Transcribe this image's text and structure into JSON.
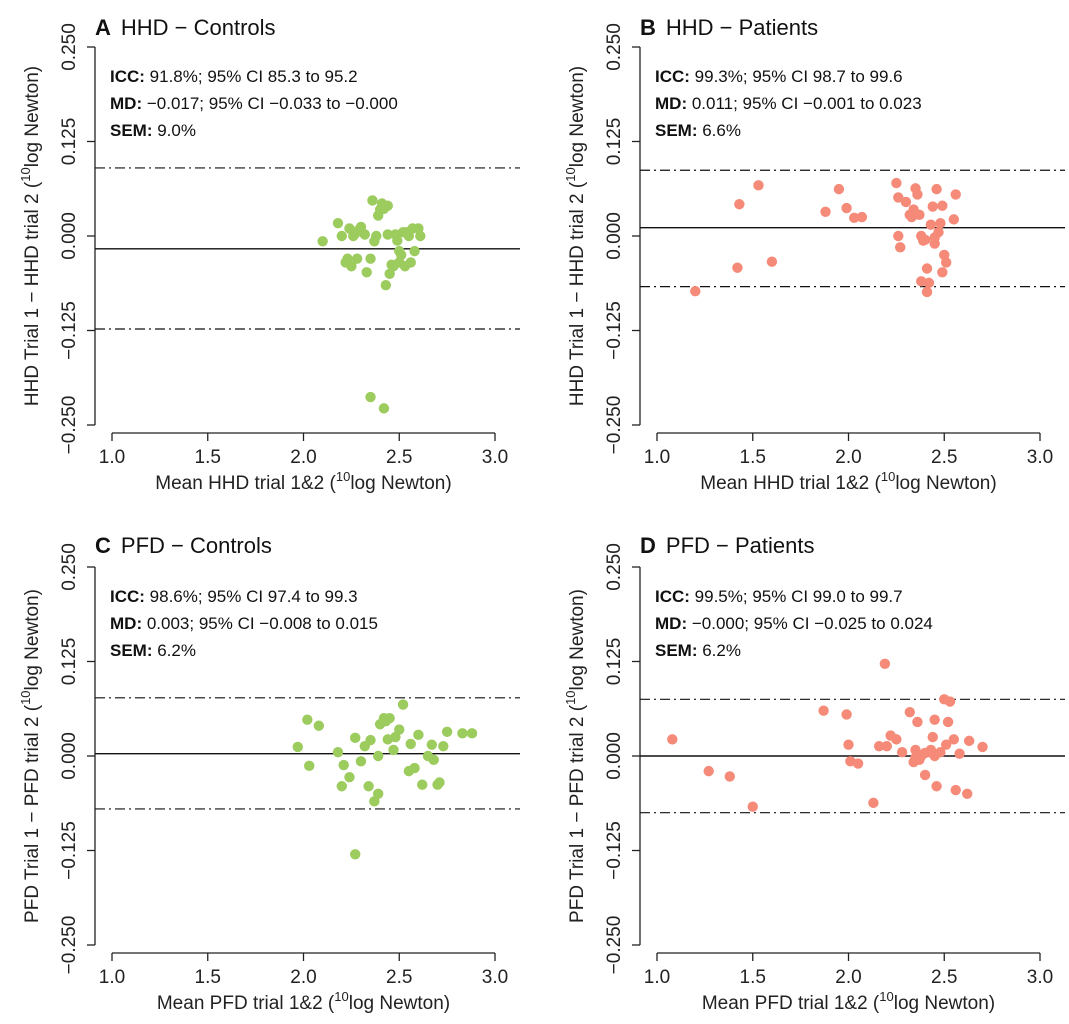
{
  "chart_data": [
    {
      "type": "scatter",
      "panel": "A",
      "title": "HHD − Controls",
      "xlabel_main": "Mean HHD trial 1&2 (",
      "xlabel_sup": "10",
      "xlabel_end": "log Newton)",
      "ylabel_main": "HHD Trial 1 − HHD trial 2 (",
      "ylabel_sup": "10",
      "ylabel_end": "log Newton)",
      "stats": [
        {
          "key": "ICC:",
          "text": " 91.8%; 95% CI 85.3 to 95.2"
        },
        {
          "key": "MD:",
          "text": " −0.017; 95% CI −0.033 to −0.000"
        },
        {
          "key": "SEM:",
          "text": " 9.0%"
        }
      ],
      "xticks": [
        "1.0",
        "1.5",
        "2.0",
        "2.5",
        "3.0"
      ],
      "xtick_values": [
        1.0,
        1.5,
        2.0,
        2.5,
        3.0
      ],
      "yticks": [
        "−0.250",
        "−0.125",
        "0.000",
        "0.125",
        "0.250"
      ],
      "ytick_values": [
        -0.25,
        -0.125,
        0.0,
        0.125,
        0.25
      ],
      "xlim": [
        1.0,
        3.0
      ],
      "ylim": [
        -0.25,
        0.25
      ],
      "mean_diff": -0.017,
      "loa_upper": 0.09,
      "loa_lower": -0.123,
      "color": "#9ccb5e",
      "x": [
        2.1,
        2.18,
        2.2,
        2.22,
        2.24,
        2.25,
        2.27,
        2.28,
        2.3,
        2.32,
        2.33,
        2.35,
        2.36,
        2.37,
        2.39,
        2.4,
        2.41,
        2.42,
        2.43,
        2.44,
        2.45,
        2.46,
        2.47,
        2.48,
        2.49,
        2.5,
        2.51,
        2.52,
        2.53,
        2.55,
        2.56,
        2.57,
        2.58,
        2.6,
        2.61,
        2.35,
        2.42,
        2.23,
        2.26,
        2.29,
        2.38,
        2.44,
        2.5,
        2.54
      ],
      "y": [
        -0.007,
        0.017,
        0.0,
        -0.035,
        0.01,
        -0.04,
        0.003,
        -0.03,
        0.012,
        0.002,
        -0.048,
        -0.03,
        0.047,
        -0.007,
        0.027,
        0.035,
        0.043,
        0.036,
        -0.065,
        0.04,
        -0.05,
        -0.038,
        -0.04,
        0.002,
        -0.006,
        -0.035,
        -0.025,
        0.005,
        -0.04,
        0.0,
        -0.035,
        0.01,
        -0.02,
        0.01,
        0.0,
        -0.213,
        -0.228,
        -0.03,
        0.0,
        0.008,
        0.0,
        0.002,
        -0.02,
        0.005
      ]
    },
    {
      "type": "scatter",
      "panel": "B",
      "title": "HHD − Patients",
      "xlabel_main": "Mean HHD trial 1&2 (",
      "xlabel_sup": "10",
      "xlabel_end": "log Newton)",
      "ylabel_main": "HHD Trial 1 − HHD trial 2 (",
      "ylabel_sup": "10",
      "ylabel_end": "log Newton)",
      "stats": [
        {
          "key": "ICC:",
          "text": " 99.3%; 95% CI 98.7 to 99.6"
        },
        {
          "key": "MD:",
          "text": " 0.011; 95% CI −0.001 to 0.023"
        },
        {
          "key": "SEM:",
          "text": " 6.6%"
        }
      ],
      "xticks": [
        "1.0",
        "1.5",
        "2.0",
        "2.5",
        "3.0"
      ],
      "xtick_values": [
        1.0,
        1.5,
        2.0,
        2.5,
        3.0
      ],
      "yticks": [
        "−0.250",
        "−0.125",
        "0.000",
        "0.125",
        "0.250"
      ],
      "ytick_values": [
        -0.25,
        -0.125,
        0.0,
        0.125,
        0.25
      ],
      "xlim": [
        1.0,
        3.0
      ],
      "ylim": [
        -0.25,
        0.25
      ],
      "mean_diff": 0.011,
      "loa_upper": 0.087,
      "loa_lower": -0.067,
      "color": "#f58a78",
      "x": [
        1.2,
        1.42,
        1.43,
        1.53,
        1.6,
        1.88,
        1.95,
        1.99,
        2.03,
        2.07,
        2.25,
        2.26,
        2.27,
        2.3,
        2.32,
        2.33,
        2.35,
        2.36,
        2.37,
        2.38,
        2.39,
        2.4,
        2.41,
        2.42,
        2.43,
        2.44,
        2.45,
        2.46,
        2.47,
        2.48,
        2.49,
        2.5,
        2.51,
        2.55,
        2.56,
        2.38,
        2.41,
        2.26,
        2.34,
        2.45,
        2.49
      ],
      "y": [
        -0.073,
        -0.042,
        0.042,
        0.067,
        -0.034,
        0.032,
        0.062,
        0.037,
        0.024,
        0.025,
        0.07,
        0.051,
        -0.015,
        0.045,
        0.028,
        0.025,
        0.063,
        0.055,
        0.028,
        0.0,
        -0.006,
        -0.005,
        -0.043,
        -0.062,
        0.015,
        0.039,
        -0.002,
        0.062,
        0.005,
        0.017,
        0.04,
        -0.025,
        -0.035,
        0.022,
        0.055,
        -0.06,
        -0.074,
        0.0,
        0.035,
        -0.01,
        -0.048
      ]
    },
    {
      "type": "scatter",
      "panel": "C",
      "title": "PFD − Controls",
      "xlabel_main": "Mean PFD trial 1&2 (",
      "xlabel_sup": "10",
      "xlabel_end": "log Newton)",
      "ylabel_main": "PFD Trial 1 − PFD trial 2 (",
      "ylabel_sup": "10",
      "ylabel_end": "log Newton)",
      "stats": [
        {
          "key": "ICC:",
          "text": " 98.6%; 95% CI 97.4 to 99.3"
        },
        {
          "key": "MD:",
          "text": " 0.003; 95% CI −0.008 to 0.015"
        },
        {
          "key": "SEM:",
          "text": " 6.2%"
        }
      ],
      "xticks": [
        "1.0",
        "1.5",
        "2.0",
        "2.5",
        "3.0"
      ],
      "xtick_values": [
        1.0,
        1.5,
        2.0,
        2.5,
        3.0
      ],
      "yticks": [
        "−0.250",
        "−0.125",
        "0.000",
        "0.125",
        "0.250"
      ],
      "ytick_values": [
        -0.25,
        -0.125,
        0.0,
        0.125,
        0.25
      ],
      "xlim": [
        1.0,
        3.0
      ],
      "ylim": [
        -0.25,
        0.25
      ],
      "mean_diff": 0.003,
      "loa_upper": 0.077,
      "loa_lower": -0.07,
      "color": "#9ccb5e",
      "x": [
        1.97,
        2.02,
        2.03,
        2.08,
        2.18,
        2.2,
        2.21,
        2.27,
        2.3,
        2.32,
        2.34,
        2.37,
        2.39,
        2.4,
        2.42,
        2.43,
        2.44,
        2.45,
        2.48,
        2.5,
        2.52,
        2.55,
        2.56,
        2.58,
        2.6,
        2.62,
        2.65,
        2.67,
        2.7,
        2.71,
        2.73,
        2.75,
        2.83,
        2.88,
        2.27,
        2.39,
        2.35,
        2.24,
        2.47,
        2.68
      ],
      "y": [
        0.012,
        0.048,
        -0.013,
        0.04,
        0.005,
        -0.04,
        -0.012,
        -0.13,
        -0.007,
        0.013,
        -0.04,
        -0.06,
        -0.05,
        0.042,
        0.05,
        0.046,
        0.022,
        0.05,
        0.025,
        0.035,
        0.068,
        -0.02,
        0.016,
        -0.016,
        0.028,
        -0.038,
        0.0,
        0.015,
        -0.038,
        -0.035,
        0.013,
        0.032,
        0.03,
        0.03,
        0.024,
        0.0,
        0.021,
        -0.028,
        0.008,
        -0.005
      ]
    },
    {
      "type": "scatter",
      "panel": "D",
      "title": "PFD − Patients",
      "xlabel_main": "Mean PFD trial 1&2 (",
      "xlabel_sup": "10",
      "xlabel_end": "log Newton)",
      "ylabel_main": "PFD Trial 1 − PFD trial 2 (",
      "ylabel_sup": "10",
      "ylabel_end": "log Newton)",
      "stats": [
        {
          "key": "ICC:",
          "text": " 99.5%; 95% CI 99.0 to 99.7"
        },
        {
          "key": "MD:",
          "text": " −0.000; 95% CI −0.025 to 0.024"
        },
        {
          "key": "SEM:",
          "text": " 6.2%"
        }
      ],
      "xticks": [
        "1.0",
        "1.5",
        "2.0",
        "2.5",
        "3.0"
      ],
      "xtick_values": [
        1.0,
        1.5,
        2.0,
        2.5,
        3.0
      ],
      "yticks": [
        "−0.250",
        "−0.125",
        "0.000",
        "0.125",
        "0.250"
      ],
      "ytick_values": [
        -0.25,
        -0.125,
        0.0,
        0.125,
        0.25
      ],
      "xlim": [
        1.0,
        3.0
      ],
      "ylim": [
        -0.25,
        0.25
      ],
      "mean_diff": 0.0,
      "loa_upper": 0.075,
      "loa_lower": -0.075,
      "color": "#f58a78",
      "x": [
        1.08,
        1.27,
        1.38,
        1.5,
        1.87,
        1.99,
        2.0,
        2.01,
        2.05,
        2.13,
        2.16,
        2.19,
        2.2,
        2.22,
        2.25,
        2.32,
        2.34,
        2.35,
        2.36,
        2.37,
        2.38,
        2.4,
        2.42,
        2.43,
        2.44,
        2.45,
        2.46,
        2.48,
        2.5,
        2.51,
        2.52,
        2.53,
        2.55,
        2.56,
        2.58,
        2.62,
        2.63,
        2.7,
        2.45,
        2.4,
        2.35,
        2.28
      ],
      "y": [
        0.022,
        -0.02,
        -0.027,
        -0.067,
        0.06,
        0.055,
        0.015,
        -0.007,
        -0.01,
        -0.062,
        0.013,
        0.122,
        0.013,
        0.027,
        0.022,
        0.058,
        -0.008,
        0.008,
        0.045,
        -0.005,
        0.0,
        -0.025,
        0.005,
        0.008,
        0.025,
        0.048,
        -0.04,
        0.005,
        0.075,
        0.015,
        0.045,
        0.072,
        0.022,
        -0.045,
        0.003,
        -0.05,
        0.02,
        0.012,
        0.0,
        0.004,
        -0.002,
        0.005
      ]
    }
  ]
}
